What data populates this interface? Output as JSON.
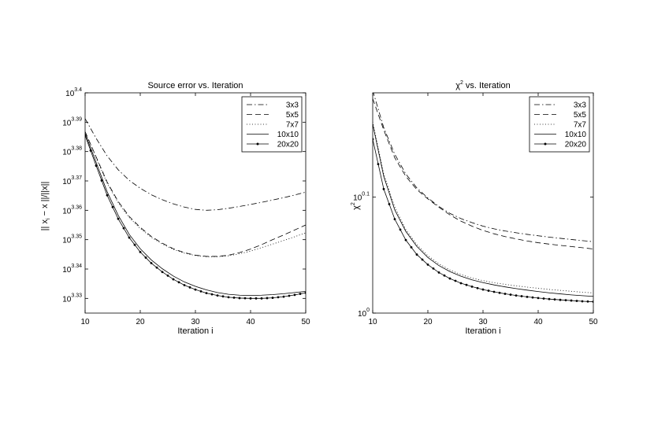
{
  "chart_data": [
    {
      "type": "line",
      "title": "Source error vs. Iteration",
      "xlabel": "Iteration i",
      "ylabel": "|| x_i − x ||/||x||",
      "y_scale": "log10",
      "xlim": [
        10,
        50
      ],
      "ylim_exponent": [
        3.325,
        3.4
      ],
      "xticks": [
        "10",
        "20",
        "30",
        "40",
        "50"
      ],
      "yticks": [
        {
          "base": "10",
          "exp": "3.33",
          "value": 3.33
        },
        {
          "base": "10",
          "exp": "3.34",
          "value": 3.34
        },
        {
          "base": "10",
          "exp": "3.35",
          "value": 3.35
        },
        {
          "base": "10",
          "exp": "3.36",
          "value": 3.36
        },
        {
          "base": "10",
          "exp": "3.37",
          "value": 3.37
        },
        {
          "base": "10",
          "exp": "3.38",
          "value": 3.38
        },
        {
          "base": "10",
          "exp": "3.39",
          "value": 3.39
        },
        {
          "base": "10",
          "exp": "3.4",
          "value": 3.4
        }
      ],
      "legend_position": "top-right",
      "x": [
        10,
        12,
        14,
        16,
        18,
        20,
        22,
        24,
        26,
        28,
        30,
        32,
        34,
        36,
        38,
        40,
        42,
        44,
        46,
        48,
        50
      ],
      "series": [
        {
          "name": "3x3",
          "style": "dashdot",
          "values": [
            3.3912,
            3.3845,
            3.3785,
            3.3738,
            3.3702,
            3.3675,
            3.3653,
            3.3636,
            3.3622,
            3.3611,
            3.3603,
            3.36,
            3.3602,
            3.3607,
            3.3613,
            3.362,
            3.3627,
            3.3635,
            3.3643,
            3.3652,
            3.3662
          ]
        },
        {
          "name": "5x5",
          "style": "dashed",
          "values": [
            3.3868,
            3.3782,
            3.3696,
            3.363,
            3.3579,
            3.3542,
            3.3511,
            3.3488,
            3.3469,
            3.3456,
            3.3447,
            3.3443,
            3.3443,
            3.3447,
            3.3456,
            3.3468,
            3.3483,
            3.35,
            3.3516,
            3.3533,
            3.355
          ]
        },
        {
          "name": "7x7",
          "style": "dotted",
          "values": [
            3.3866,
            3.3778,
            3.3692,
            3.3626,
            3.3575,
            3.3538,
            3.3508,
            3.3485,
            3.3467,
            3.3454,
            3.3446,
            3.3442,
            3.3442,
            3.3445,
            3.3452,
            3.3461,
            3.3473,
            3.3485,
            3.3497,
            3.351,
            3.3523
          ]
        },
        {
          "name": "10x10",
          "style": "solid",
          "values": [
            3.3862,
            3.3763,
            3.3663,
            3.3583,
            3.3518,
            3.3469,
            3.3431,
            3.3401,
            3.3376,
            3.3356,
            3.3341,
            3.3329,
            3.332,
            3.3314,
            3.3311,
            3.331,
            3.3311,
            3.3313,
            3.3316,
            3.332,
            3.3324
          ]
        },
        {
          "name": "20x20",
          "style": "solid-dot",
          "values": [
            3.3855,
            3.3752,
            3.3651,
            3.3571,
            3.3507,
            3.3458,
            3.342,
            3.339,
            3.3365,
            3.3345,
            3.333,
            3.3318,
            3.331,
            3.3304,
            3.3301,
            3.33,
            3.33,
            3.3302,
            3.3306,
            3.3312,
            3.3319
          ]
        }
      ]
    },
    {
      "type": "line",
      "title": "χ² vs. Iteration",
      "xlabel": "Iteration i",
      "ylabel": "χ²",
      "y_scale": "log10",
      "xlim": [
        10,
        50
      ],
      "ylim_exponent": [
        0.0,
        0.19
      ],
      "xticks": [
        "10",
        "20",
        "30",
        "40",
        "50"
      ],
      "yticks": [
        {
          "base": "10",
          "exp": "0",
          "value": 0.0
        },
        {
          "base": "10",
          "exp": "0.1",
          "value": 0.1
        }
      ],
      "legend_position": "top-right",
      "x": [
        10,
        12,
        14,
        16,
        18,
        20,
        22,
        24,
        26,
        28,
        30,
        32,
        34,
        36,
        38,
        40,
        42,
        44,
        46,
        48,
        50
      ],
      "series": [
        {
          "name": "3x3",
          "style": "dashdot",
          "values": [
            0.192,
            0.16,
            0.137,
            0.12,
            0.108,
            0.0993,
            0.092,
            0.086,
            0.0815,
            0.078,
            0.075,
            0.0727,
            0.0708,
            0.0693,
            0.0679,
            0.0667,
            0.0655,
            0.0645,
            0.0635,
            0.0625,
            0.0616
          ]
        },
        {
          "name": "5x5",
          "style": "dashed",
          "values": [
            0.185,
            0.158,
            0.134,
            0.118,
            0.1065,
            0.0985,
            0.0913,
            0.0847,
            0.0793,
            0.075,
            0.0713,
            0.0684,
            0.066,
            0.064,
            0.0622,
            0.0607,
            0.0595,
            0.0584,
            0.0574,
            0.0564,
            0.0553
          ]
        },
        {
          "name": "7x7",
          "style": "dotted",
          "values": [
            0.165,
            0.12,
            0.0915,
            0.072,
            0.059,
            0.0495,
            0.0425,
            0.0372,
            0.0332,
            0.0302,
            0.028,
            0.0262,
            0.0248,
            0.0235,
            0.0224,
            0.0214,
            0.0204,
            0.0196,
            0.0188,
            0.018,
            0.0174
          ]
        },
        {
          "name": "10x10",
          "style": "solid",
          "values": [
            0.163,
            0.118,
            0.089,
            0.0705,
            0.0575,
            0.048,
            0.041,
            0.0358,
            0.0318,
            0.0287,
            0.0263,
            0.0243,
            0.0226,
            0.0211,
            0.0198,
            0.0186,
            0.0175,
            0.0166,
            0.0157,
            0.015,
            0.0144
          ]
        },
        {
          "name": "20x20",
          "style": "solid-dot",
          "values": [
            0.15,
            0.107,
            0.081,
            0.063,
            0.0505,
            0.0418,
            0.035,
            0.0298,
            0.0258,
            0.0228,
            0.0203,
            0.0183,
            0.0166,
            0.0152,
            0.014,
            0.013,
            0.0121,
            0.0114,
            0.0108,
            0.0102,
            0.0098
          ]
        }
      ]
    }
  ]
}
